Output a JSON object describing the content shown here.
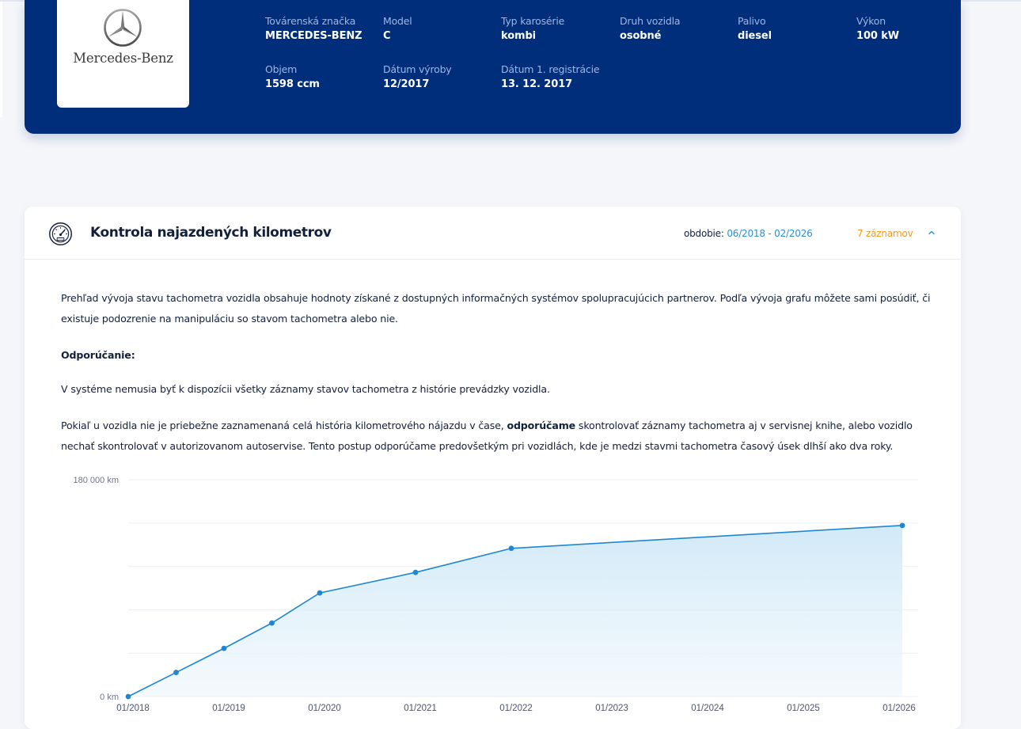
{
  "vehicle": {
    "brand_logo_text": "Mercedes-Benz",
    "specs": [
      {
        "label": "Továrenská značka",
        "value": "MERCEDES-BENZ"
      },
      {
        "label": "Model",
        "value": "C"
      },
      {
        "label": "Typ karosérie",
        "value": "kombi"
      },
      {
        "label": "Druh vozidla",
        "value": "osobné"
      },
      {
        "label": "Palivo",
        "value": "diesel"
      },
      {
        "label": "Výkon",
        "value": "100 kW"
      },
      {
        "label": "Objem",
        "value": "1598 ccm"
      },
      {
        "label": "Dátum výroby",
        "value": "12/2017"
      },
      {
        "label": "Dátum 1. registrácie",
        "value": "13. 12. 2017"
      }
    ]
  },
  "km_section": {
    "title": "Kontrola najazdených kilometrov",
    "icon": "speedometer-icon",
    "period_label": "obdobie:",
    "period_value": "06/2018 - 02/2026",
    "records_count": "7 záznamov",
    "collapse_icon": "chevron-up-icon",
    "paragraph_1": "Prehľad vývoja stavu tachometra vozidla obsahuje hodnoty získané z dostupných informačných systémov spolupracujúcich partnerov. Podľa vývoja grafu môžete sami posúdiť, či existuje podozrenie na manipuláciu so stavom tachometra alebo nie.",
    "recommendation_heading": "Odporúčanie:",
    "paragraph_2": "V systéme nemusia byť k dispozícii všetky záznamy stavov tachometra z histórie prevádzky vozidla.",
    "paragraph_3_start": "Pokiaľ u vozidla nie je priebežne zaznamenaná celá história kilometrového nájazdu v čase, ",
    "paragraph_3_bold": "odporúčame",
    "paragraph_3_end": " skontrolovať záznamy tachometra aj v servisnej knihe, alebo vozidlo nechať skontrolovať v autorizovanom autoservise. Tento postup odporúčame predovšetkým pri vozidlách, kde je medzi stavmi tachometra časový úsek dlhší ako dva roky."
  },
  "colors": {
    "header_bg": "#002e7a",
    "accent_blue": "#2b8fd6",
    "orange": "#f59a1d",
    "line": "#1f86d1",
    "area_fill": "#d6ecf8"
  },
  "chart_data": {
    "type": "area",
    "x": [
      "2018-01",
      "2018-07",
      "2019-01",
      "2019-07",
      "2020-01",
      "2021-01",
      "2022-01",
      "2026-02"
    ],
    "values": [
      0,
      20000,
      40000,
      61000,
      86000,
      103000,
      123000,
      142000
    ],
    "ylim": [
      0,
      180000
    ],
    "y_tick_labels": [
      {
        "value": 0,
        "label": "0 km"
      },
      {
        "value": 180000,
        "label": "180 000 km"
      }
    ],
    "gridlines": [
      0,
      36000,
      72000,
      108000,
      144000,
      180000
    ],
    "x_tick_labels": [
      "01/2018",
      "01/2019",
      "01/2020",
      "01/2021",
      "01/2022",
      "01/2023",
      "01/2024",
      "01/2025",
      "01/2026"
    ],
    "grid": true
  }
}
